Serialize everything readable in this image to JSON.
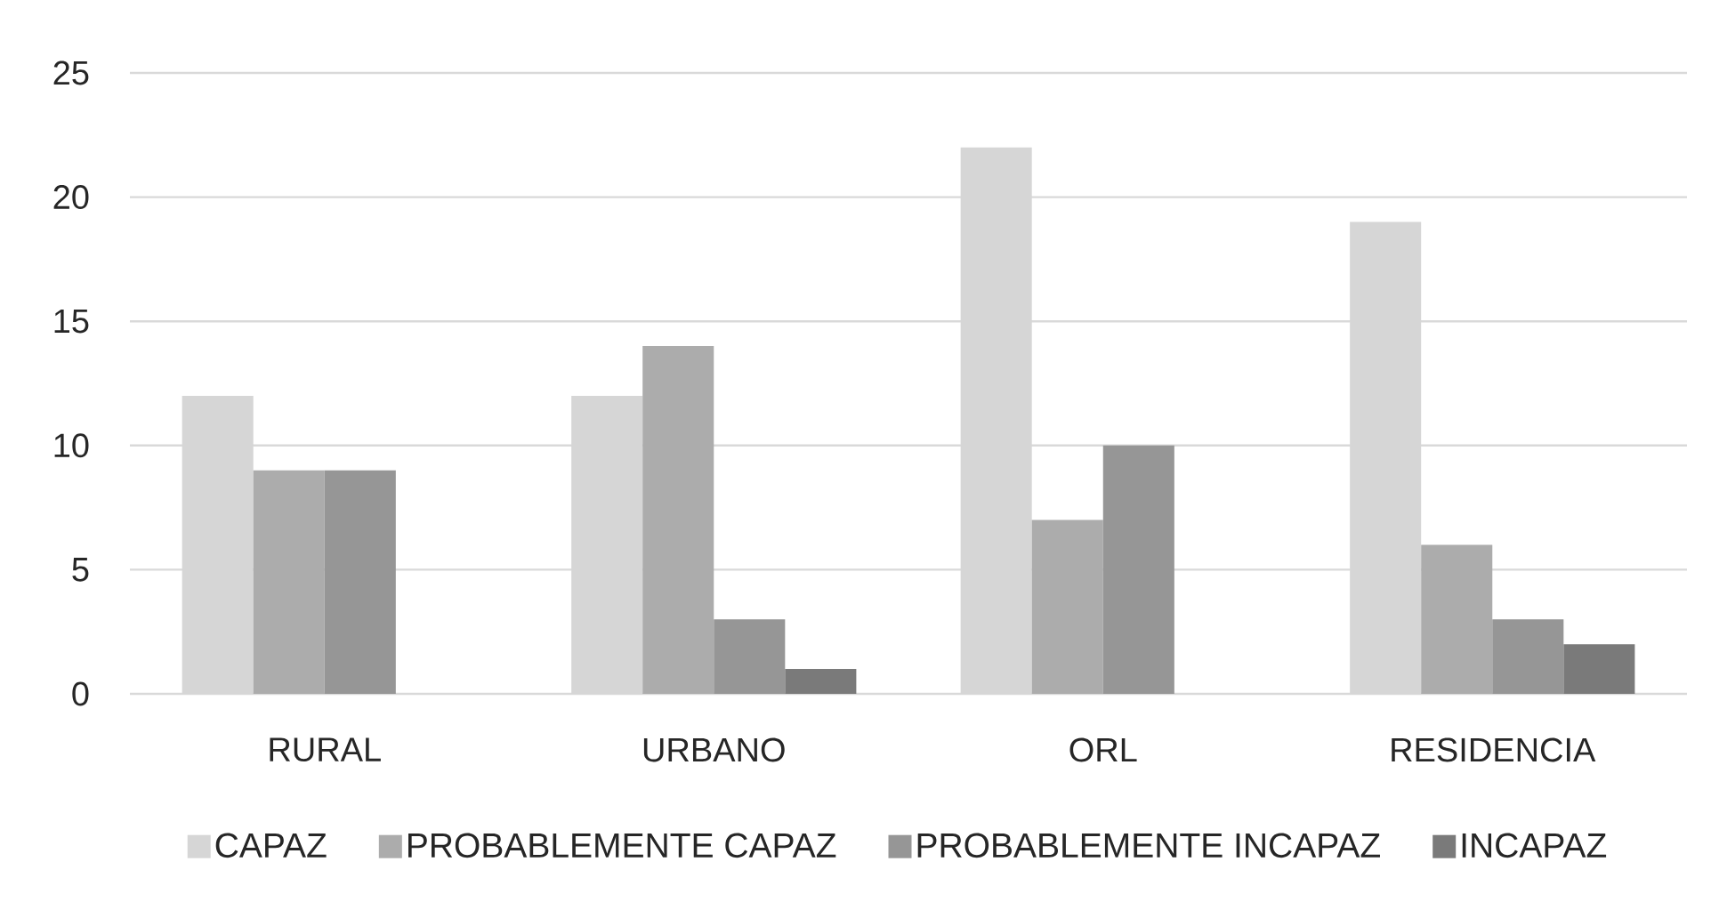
{
  "chart_data": {
    "type": "bar",
    "categories": [
      "RURAL",
      "URBANO",
      "ORL",
      "RESIDENCIA"
    ],
    "series": [
      {
        "name": "CAPAZ",
        "color": "#d6d6d6",
        "values": [
          12,
          12,
          22,
          19
        ]
      },
      {
        "name": "PROBABLEMENTE CAPAZ",
        "color": "#acacac",
        "values": [
          9,
          14,
          7,
          6
        ]
      },
      {
        "name": "PROBABLEMENTE INCAPAZ",
        "color": "#969696",
        "values": [
          9,
          3,
          10,
          3
        ]
      },
      {
        "name": "INCAPAZ",
        "color": "#7a7a7a",
        "values": [
          null,
          1,
          null,
          2
        ]
      }
    ],
    "ylim": [
      0,
      25
    ],
    "yticks": [
      0,
      5,
      10,
      15,
      20,
      25
    ],
    "grid": "y",
    "legend": "bottom"
  }
}
